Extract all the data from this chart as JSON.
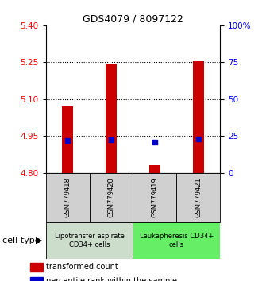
{
  "title": "GDS4079 / 8097122",
  "samples": [
    "GSM779418",
    "GSM779420",
    "GSM779419",
    "GSM779421"
  ],
  "red_bar_tops": [
    5.07,
    5.245,
    4.83,
    5.255
  ],
  "blue_marker_values": [
    4.932,
    4.935,
    4.924,
    4.937
  ],
  "y_min": 4.8,
  "y_max": 5.4,
  "y_ticks_left": [
    4.8,
    4.95,
    5.1,
    5.25,
    5.4
  ],
  "y_ticks_right": [
    0,
    25,
    50,
    75,
    100
  ],
  "dotted_lines": [
    4.95,
    5.1,
    5.25
  ],
  "group1_label": "Lipotransfer aspirate\nCD34+ cells",
  "group2_label": "Leukapheresis CD34+\ncells",
  "group1_color": "#ccddcc",
  "group2_color": "#66ee66",
  "sample_box_color": "#d0d0d0",
  "bar_color": "#cc0000",
  "marker_color": "#0000cc",
  "legend_red": "transformed count",
  "legend_blue": "percentile rank within the sample",
  "cell_type_label": "cell type",
  "title_fontsize": 9,
  "tick_fontsize": 7.5,
  "sample_fontsize": 6,
  "group_fontsize": 6,
  "legend_fontsize": 7,
  "bar_width": 0.25
}
